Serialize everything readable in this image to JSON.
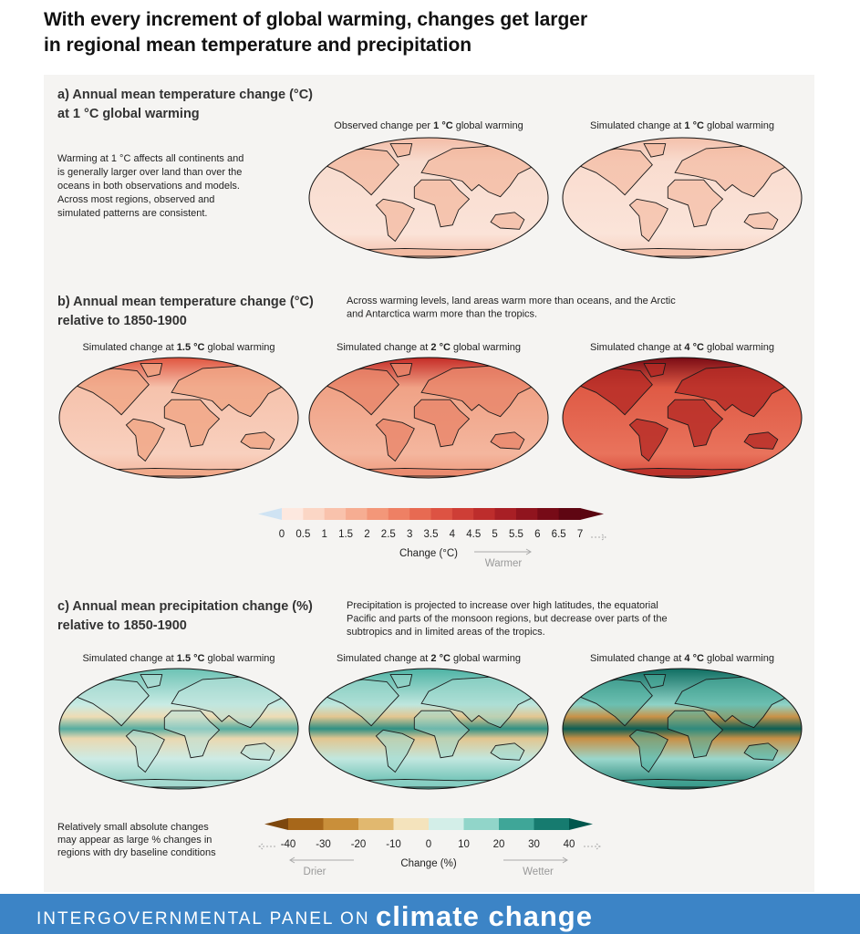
{
  "title": {
    "line1": "With every increment of global warming, changes get larger",
    "line2": "in regional mean temperature and precipitation"
  },
  "panel_a": {
    "heading": [
      "a) Annual mean temperature change (°C)",
      "at 1 °C global warming"
    ],
    "description": [
      "Warming at 1 °C affects all continents and",
      "is generally larger over land than over the",
      "oceans in both observations and models.",
      "Across most regions, observed and",
      "simulated patterns are consistent."
    ],
    "maps": [
      {
        "before": "Observed change per ",
        "bold": "1 °C",
        "after": " global warming"
      },
      {
        "before": "Simulated change at ",
        "bold": "1 °C",
        "after": " global warming"
      }
    ]
  },
  "panel_b": {
    "heading": [
      "b) Annual mean temperature change (°C)",
      "relative to 1850-1900"
    ],
    "description": [
      "Across warming levels, land areas warm more than oceans, and the Arctic",
      "and Antarctica warm more than the tropics."
    ],
    "maps": [
      {
        "before": "Simulated change at ",
        "bold": "1.5 °C",
        "after": " global warming"
      },
      {
        "before": "Simulated change at ",
        "bold": "2 °C",
        "after": " global warming"
      },
      {
        "before": "Simulated change at ",
        "bold": "4 °C",
        "after": " global warming"
      }
    ]
  },
  "temperature_scale": {
    "ticks": [
      0,
      0.5,
      1,
      1.5,
      2,
      2.5,
      3,
      3.5,
      4,
      4.5,
      5,
      5.5,
      6,
      6.5,
      7
    ],
    "label": "Change (°C)",
    "direction": "Warmer"
  },
  "panel_c": {
    "heading": [
      "c) Annual mean precipitation change (%)",
      "relative to 1850-1900"
    ],
    "description": [
      "Precipitation is projected to increase over high latitudes, the equatorial",
      "Pacific and parts of the monsoon regions, but decrease over parts of the",
      "subtropics and in limited areas of the tropics."
    ],
    "maps": [
      {
        "before": "Simulated change at ",
        "bold": "1.5 °C",
        "after": " global warming"
      },
      {
        "before": "Simulated change at ",
        "bold": "2 °C",
        "after": " global warming"
      },
      {
        "before": "Simulated change at ",
        "bold": "4 °C",
        "after": " global warming"
      }
    ],
    "note": [
      "Relatively small absolute changes",
      "may appear as large % changes in",
      "regions with dry baseline conditions"
    ]
  },
  "precipitation_scale": {
    "ticks": [
      -40,
      -30,
      -20,
      -10,
      0,
      10,
      20,
      30,
      40
    ],
    "label": "Change (%)",
    "left_direction": "Drier",
    "right_direction": "Wetter"
  },
  "footer": {
    "organization": "INTERGOVERNMENTAL PANEL ON",
    "brand": "climate change"
  }
}
